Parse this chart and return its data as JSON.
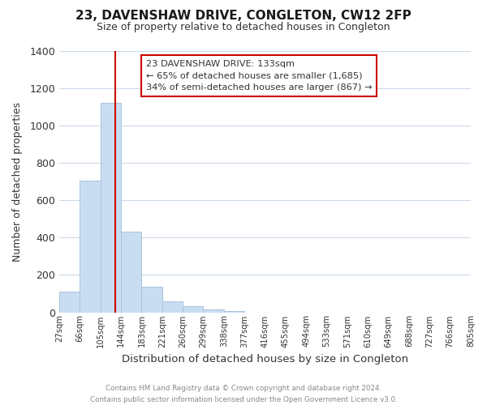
{
  "title": "23, DAVENSHAW DRIVE, CONGLETON, CW12 2FP",
  "subtitle": "Size of property relative to detached houses in Congleton",
  "xlabel": "Distribution of detached houses by size in Congleton",
  "ylabel": "Number of detached properties",
  "bin_labels": [
    "27sqm",
    "66sqm",
    "105sqm",
    "144sqm",
    "183sqm",
    "221sqm",
    "260sqm",
    "299sqm",
    "338sqm",
    "377sqm",
    "416sqm",
    "455sqm",
    "494sqm",
    "533sqm",
    "571sqm",
    "610sqm",
    "649sqm",
    "688sqm",
    "727sqm",
    "766sqm",
    "805sqm"
  ],
  "bar_heights": [
    110,
    705,
    1120,
    430,
    135,
    58,
    32,
    15,
    5,
    0,
    0,
    0,
    0,
    0,
    0,
    0,
    0,
    0,
    0,
    0
  ],
  "bar_color": "#c9ddf0",
  "bar_edge_color": "#a8c4e0",
  "vline_color": "#cc0000",
  "vline_position": 2.718,
  "annotation_text": "23 DAVENSHAW DRIVE: 133sqm\n← 65% of detached houses are smaller (1,685)\n34% of semi-detached houses are larger (867) →",
  "annotation_box_color": "#ffffff",
  "annotation_box_edge": "#cc0000",
  "ylim": [
    0,
    1400
  ],
  "yticks": [
    0,
    200,
    400,
    600,
    800,
    1000,
    1200,
    1400
  ],
  "footer_line1": "Contains HM Land Registry data © Crown copyright and database right 2024.",
  "footer_line2": "Contains public sector information licensed under the Open Government Licence v3.0.",
  "fig_width": 6.0,
  "fig_height": 5.0,
  "background_color": "#ffffff",
  "grid_color": "#cddaea"
}
